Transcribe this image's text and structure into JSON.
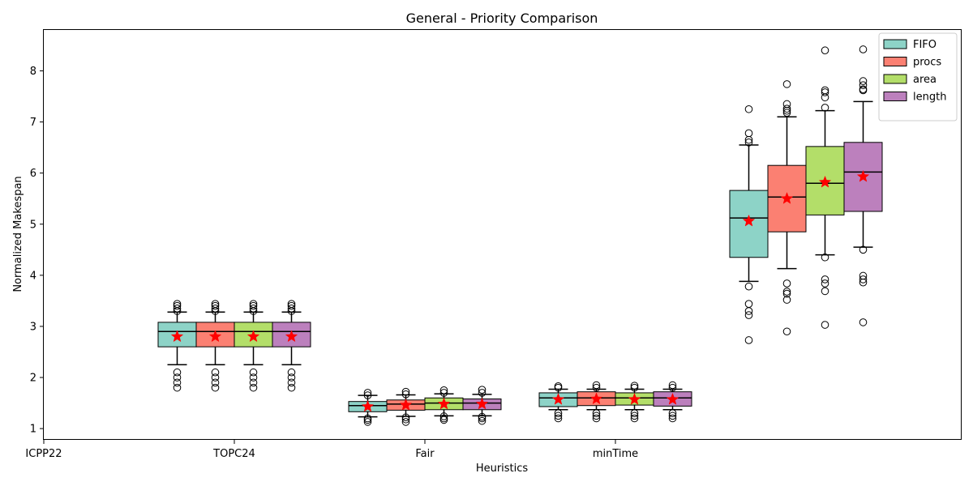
{
  "chart_data": {
    "type": "box",
    "title": "General - Priority Comparison",
    "xlabel": "Heuristics",
    "ylabel": "Normalized Makespan",
    "categories": [
      "ICPP22",
      "TOPC24",
      "Fair",
      "minTime"
    ],
    "ylim": [
      0.78,
      8.8
    ],
    "yticks": [
      1,
      2,
      3,
      4,
      5,
      6,
      7,
      8
    ],
    "legend_position": "upper-right",
    "mean_marker": "red star",
    "series": [
      {
        "name": "FIFO",
        "color": "#8dd3c7",
        "boxes": [
          {
            "q1": 2.6,
            "median": 2.9,
            "q3": 3.08,
            "whisker_low": 2.25,
            "whisker_high": 3.28,
            "mean": 2.8,
            "outliers": [
              1.8,
              1.9,
              2.0,
              2.1,
              3.3,
              3.35,
              3.4,
              3.44
            ]
          },
          {
            "q1": 1.33,
            "median": 1.45,
            "q3": 1.53,
            "whisker_low": 1.23,
            "whisker_high": 1.65,
            "mean": 1.43,
            "outliers": [
              1.13,
              1.17,
              1.2,
              1.65,
              1.7
            ]
          },
          {
            "q1": 1.43,
            "median": 1.6,
            "q3": 1.7,
            "whisker_low": 1.37,
            "whisker_high": 1.77,
            "mean": 1.57,
            "outliers": [
              1.2,
              1.25,
              1.3,
              1.8,
              1.83
            ]
          },
          {
            "q1": 4.35,
            "median": 5.12,
            "q3": 5.66,
            "whisker_low": 3.88,
            "whisker_high": 6.55,
            "mean": 5.06,
            "outliers": [
              2.73,
              3.22,
              3.3,
              3.44,
              3.78,
              6.6,
              6.65,
              6.78,
              7.25
            ]
          }
        ]
      },
      {
        "name": "procs",
        "color": "#fb8072",
        "boxes": [
          {
            "q1": 2.6,
            "median": 2.9,
            "q3": 3.08,
            "whisker_low": 2.25,
            "whisker_high": 3.28,
            "mean": 2.8,
            "outliers": [
              1.8,
              1.9,
              2.0,
              2.1,
              3.3,
              3.35,
              3.4,
              3.44
            ]
          },
          {
            "q1": 1.36,
            "median": 1.48,
            "q3": 1.56,
            "whisker_low": 1.24,
            "whisker_high": 1.66,
            "mean": 1.46,
            "outliers": [
              1.13,
              1.18,
              1.22,
              1.67,
              1.72
            ]
          },
          {
            "q1": 1.45,
            "median": 1.6,
            "q3": 1.72,
            "whisker_low": 1.37,
            "whisker_high": 1.77,
            "mean": 1.58,
            "outliers": [
              1.2,
              1.25,
              1.3,
              1.8,
              1.85
            ]
          },
          {
            "q1": 4.85,
            "median": 5.53,
            "q3": 6.15,
            "whisker_low": 4.13,
            "whisker_high": 7.1,
            "mean": 5.5,
            "outliers": [
              2.9,
              3.52,
              3.64,
              3.68,
              3.84,
              7.18,
              7.22,
              7.26,
              7.35,
              7.74
            ]
          }
        ]
      },
      {
        "name": "area",
        "color": "#b3de69",
        "boxes": [
          {
            "q1": 2.6,
            "median": 2.9,
            "q3": 3.08,
            "whisker_low": 2.25,
            "whisker_high": 3.28,
            "mean": 2.8,
            "outliers": [
              1.8,
              1.9,
              2.0,
              2.1,
              3.3,
              3.35,
              3.4,
              3.44
            ]
          },
          {
            "q1": 1.37,
            "median": 1.5,
            "q3": 1.6,
            "whisker_low": 1.25,
            "whisker_high": 1.68,
            "mean": 1.48,
            "outliers": [
              1.17,
              1.2,
              1.24,
              1.7,
              1.75
            ]
          },
          {
            "q1": 1.46,
            "median": 1.6,
            "q3": 1.7,
            "whisker_low": 1.37,
            "whisker_high": 1.77,
            "mean": 1.57,
            "outliers": [
              1.2,
              1.25,
              1.3,
              1.8,
              1.84
            ]
          },
          {
            "q1": 5.18,
            "median": 5.8,
            "q3": 6.52,
            "whisker_low": 4.4,
            "whisker_high": 7.22,
            "mean": 5.82,
            "outliers": [
              3.03,
              3.69,
              3.84,
              3.92,
              4.35,
              7.28,
              7.48,
              7.58,
              7.62,
              8.4
            ]
          }
        ]
      },
      {
        "name": "length",
        "color": "#bc80bd",
        "boxes": [
          {
            "q1": 2.6,
            "median": 2.9,
            "q3": 3.08,
            "whisker_low": 2.25,
            "whisker_high": 3.28,
            "mean": 2.8,
            "outliers": [
              1.8,
              1.9,
              2.0,
              2.1,
              3.3,
              3.35,
              3.4,
              3.44
            ]
          },
          {
            "q1": 1.37,
            "median": 1.5,
            "q3": 1.58,
            "whisker_low": 1.25,
            "whisker_high": 1.67,
            "mean": 1.48,
            "outliers": [
              1.15,
              1.2,
              1.23,
              1.7,
              1.76
            ]
          },
          {
            "q1": 1.44,
            "median": 1.6,
            "q3": 1.72,
            "whisker_low": 1.37,
            "whisker_high": 1.77,
            "mean": 1.57,
            "outliers": [
              1.2,
              1.25,
              1.3,
              1.8,
              1.85
            ]
          },
          {
            "q1": 5.25,
            "median": 6.02,
            "q3": 6.6,
            "whisker_low": 4.55,
            "whisker_high": 7.4,
            "mean": 5.93,
            "outliers": [
              3.08,
              3.86,
              3.92,
              3.99,
              4.5,
              7.62,
              7.64,
              7.72,
              7.8,
              8.42
            ]
          }
        ]
      }
    ]
  }
}
